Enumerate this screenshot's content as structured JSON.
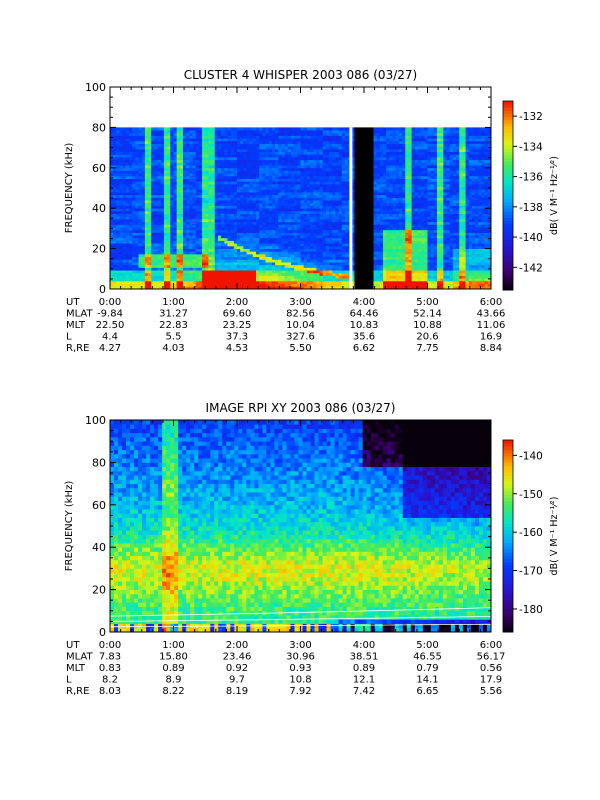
{
  "chart_data": [
    {
      "type": "heatmap",
      "title": "CLUSTER 4 WHISPER 2003 086 (03/27)",
      "ylabel": "FREQUENCY (kHz)",
      "ylim": [
        0,
        100
      ],
      "yticks": [
        "0",
        "20",
        "40",
        "60",
        "80",
        "100"
      ],
      "xlim": [
        "0:00",
        "6:00"
      ],
      "colorbar": {
        "label": "dB( V M⁻¹ Hz⁻¹⁄²)",
        "range": [
          -143.5,
          -131
        ],
        "ticks": [
          "-132",
          "-134",
          "-136",
          "-138",
          "-140",
          "-142"
        ]
      },
      "data_ceiling_khz": 80,
      "data_gap_ut": [
        "3:50",
        "4:10"
      ],
      "ephemeris": {
        "rows": [
          "UT",
          "MLAT",
          "MLT",
          "L",
          "R,RE"
        ],
        "values": [
          [
            "0:00",
            "1:00",
            "2:00",
            "3:00",
            "4:00",
            "5:00",
            "6:00"
          ],
          [
            "-9.84",
            "31.27",
            "69.60",
            "82.56",
            "64.46",
            "52.14",
            "43.66"
          ],
          [
            "22.50",
            "22.83",
            "23.25",
            "10.04",
            "10.83",
            "10.88",
            "11.06"
          ],
          [
            "4.4",
            "5.5",
            "37.3",
            "327.6",
            "35.6",
            "20.6",
            "16.9"
          ],
          [
            "4.27",
            "4.03",
            "4.53",
            "5.50",
            "6.62",
            "7.75",
            "8.84"
          ]
        ]
      }
    },
    {
      "type": "heatmap",
      "title": "IMAGE RPI XY 2003 086 (03/27)",
      "ylabel": "FREQUENCY (kHz)",
      "ylim": [
        0,
        100
      ],
      "yticks": [
        "0",
        "20",
        "40",
        "60",
        "80",
        "100"
      ],
      "xlim": [
        "0:00",
        "6:00"
      ],
      "colorbar": {
        "label": "dB( V M⁻¹ Hz⁻¹⁄²)",
        "range": [
          -186,
          -136
        ],
        "ticks": [
          "-140",
          "-150",
          "-160",
          "-170",
          "-180"
        ]
      },
      "ephemeris": {
        "rows": [
          "UT",
          "MLAT",
          "MLT",
          "L",
          "R,RE"
        ],
        "values": [
          [
            "0:00",
            "1:00",
            "2:00",
            "3:00",
            "4:00",
            "5:00",
            "6:00"
          ],
          [
            "7.83",
            "15.80",
            "23.46",
            "30.96",
            "38.51",
            "46.55",
            "56.17"
          ],
          [
            "0.83",
            "0.89",
            "0.92",
            "0.93",
            "0.89",
            "0.79",
            "0.56"
          ],
          [
            "8.2",
            "8.9",
            "9.7",
            "10.8",
            "12.1",
            "14.1",
            "17.9"
          ],
          [
            "8.03",
            "8.22",
            "8.19",
            "7.92",
            "7.42",
            "6.65",
            "5.56"
          ]
        ]
      }
    }
  ]
}
